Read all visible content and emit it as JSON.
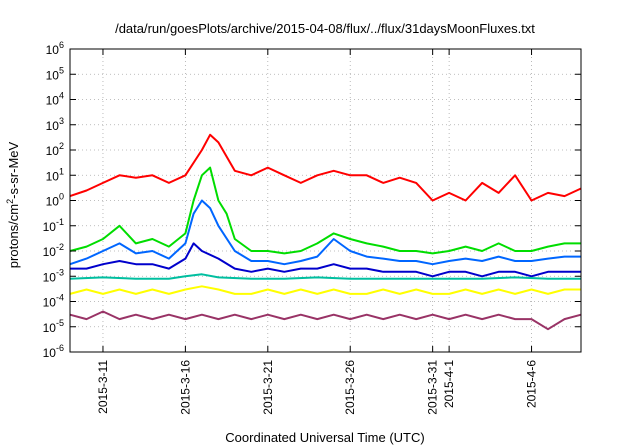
{
  "chart_data": {
    "type": "line",
    "title": "/data/run/goesPlots/archive/2015-04-08/flux/../flux/31daysMoonFluxes.txt",
    "xlabel": "Coordinated Universal Time (UTC)",
    "ylabel": {
      "prefix": "protons/cm",
      "sup": "2",
      "suffix": "-s-sr-MeV"
    },
    "y_scale": "log",
    "ylim": [
      1e-06,
      1000000.0
    ],
    "y_ticks": [
      {
        "value": 1e-06,
        "base": "10",
        "exp": "-6"
      },
      {
        "value": 1e-05,
        "base": "10",
        "exp": "-5"
      },
      {
        "value": 0.0001,
        "base": "10",
        "exp": "-4"
      },
      {
        "value": 0.001,
        "base": "10",
        "exp": "-3"
      },
      {
        "value": 0.01,
        "base": "10",
        "exp": "-2"
      },
      {
        "value": 0.1,
        "base": "10",
        "exp": "-1"
      },
      {
        "value": 1,
        "base": "10",
        "exp": "0"
      },
      {
        "value": 10,
        "base": "10",
        "exp": "1"
      },
      {
        "value": 100,
        "base": "10",
        "exp": "2"
      },
      {
        "value": 1000,
        "base": "10",
        "exp": "3"
      },
      {
        "value": 10000,
        "base": "10",
        "exp": "4"
      },
      {
        "value": 100000,
        "base": "10",
        "exp": "5"
      },
      {
        "value": 1000000,
        "base": "10",
        "exp": "6"
      }
    ],
    "xlim": [
      "2015-03-09",
      "2015-04-09"
    ],
    "x_ticks": [
      "2015-3-11",
      "2015-3-16",
      "2015-3-21",
      "2015-3-26",
      "2015-3-31",
      "2015-4-1",
      "2015-4-6"
    ],
    "grid": true,
    "series": [
      {
        "color": "#ff0000",
        "points": [
          [
            "2015-03-09",
            1.5
          ],
          [
            "2015-03-10",
            2.5
          ],
          [
            "2015-03-11",
            5
          ],
          [
            "2015-03-12",
            10
          ],
          [
            "2015-03-13",
            8
          ],
          [
            "2015-03-14",
            10
          ],
          [
            "2015-03-15",
            5
          ],
          [
            "2015-03-16",
            10
          ],
          [
            "2015-03-17",
            100
          ],
          [
            "2015-03-17T12:00",
            400
          ],
          [
            "2015-03-18",
            200
          ],
          [
            "2015-03-19",
            15
          ],
          [
            "2015-03-20",
            10
          ],
          [
            "2015-03-21",
            20
          ],
          [
            "2015-03-22",
            10
          ],
          [
            "2015-03-23",
            5
          ],
          [
            "2015-03-24",
            10
          ],
          [
            "2015-03-25",
            15
          ],
          [
            "2015-03-26",
            10
          ],
          [
            "2015-03-27",
            10
          ],
          [
            "2015-03-28",
            5
          ],
          [
            "2015-03-29",
            8
          ],
          [
            "2015-03-30",
            5
          ],
          [
            "2015-03-31",
            1
          ],
          [
            "2015-04-01",
            2
          ],
          [
            "2015-04-02",
            1
          ],
          [
            "2015-04-03",
            5
          ],
          [
            "2015-04-04",
            2
          ],
          [
            "2015-04-05",
            10
          ],
          [
            "2015-04-06",
            1
          ],
          [
            "2015-04-07",
            2
          ],
          [
            "2015-04-08",
            1.5
          ],
          [
            "2015-04-09",
            3
          ]
        ]
      },
      {
        "color": "#00dd00",
        "points": [
          [
            "2015-03-09",
            0.01
          ],
          [
            "2015-03-10",
            0.015
          ],
          [
            "2015-03-11",
            0.03
          ],
          [
            "2015-03-12",
            0.1
          ],
          [
            "2015-03-13",
            0.02
          ],
          [
            "2015-03-14",
            0.03
          ],
          [
            "2015-03-15",
            0.015
          ],
          [
            "2015-03-16",
            0.05
          ],
          [
            "2015-03-16T12:00",
            1
          ],
          [
            "2015-03-17",
            10
          ],
          [
            "2015-03-17T12:00",
            20
          ],
          [
            "2015-03-18",
            1
          ],
          [
            "2015-03-18T12:00",
            0.3
          ],
          [
            "2015-03-19",
            0.03
          ],
          [
            "2015-03-20",
            0.01
          ],
          [
            "2015-03-21",
            0.01
          ],
          [
            "2015-03-22",
            0.008
          ],
          [
            "2015-03-23",
            0.01
          ],
          [
            "2015-03-24",
            0.02
          ],
          [
            "2015-03-25",
            0.05
          ],
          [
            "2015-03-26",
            0.03
          ],
          [
            "2015-03-27",
            0.02
          ],
          [
            "2015-03-28",
            0.015
          ],
          [
            "2015-03-29",
            0.01
          ],
          [
            "2015-03-30",
            0.01
          ],
          [
            "2015-03-31",
            0.008
          ],
          [
            "2015-04-01",
            0.01
          ],
          [
            "2015-04-02",
            0.015
          ],
          [
            "2015-04-03",
            0.01
          ],
          [
            "2015-04-04",
            0.02
          ],
          [
            "2015-04-05",
            0.01
          ],
          [
            "2015-04-06",
            0.01
          ],
          [
            "2015-04-07",
            0.015
          ],
          [
            "2015-04-08",
            0.02
          ],
          [
            "2015-04-09",
            0.02
          ]
        ]
      },
      {
        "color": "#0066ff",
        "points": [
          [
            "2015-03-09",
            0.003
          ],
          [
            "2015-03-10",
            0.005
          ],
          [
            "2015-03-11",
            0.01
          ],
          [
            "2015-03-12",
            0.02
          ],
          [
            "2015-03-13",
            0.008
          ],
          [
            "2015-03-14",
            0.01
          ],
          [
            "2015-03-15",
            0.005
          ],
          [
            "2015-03-16",
            0.02
          ],
          [
            "2015-03-16T12:00",
            0.3
          ],
          [
            "2015-03-17",
            1
          ],
          [
            "2015-03-17T12:00",
            0.5
          ],
          [
            "2015-03-18",
            0.1
          ],
          [
            "2015-03-19",
            0.01
          ],
          [
            "2015-03-20",
            0.004
          ],
          [
            "2015-03-21",
            0.004
          ],
          [
            "2015-03-22",
            0.003
          ],
          [
            "2015-03-23",
            0.004
          ],
          [
            "2015-03-24",
            0.006
          ],
          [
            "2015-03-25",
            0.03
          ],
          [
            "2015-03-26",
            0.01
          ],
          [
            "2015-03-27",
            0.006
          ],
          [
            "2015-03-28",
            0.005
          ],
          [
            "2015-03-29",
            0.004
          ],
          [
            "2015-03-30",
            0.004
          ],
          [
            "2015-03-31",
            0.003
          ],
          [
            "2015-04-01",
            0.004
          ],
          [
            "2015-04-02",
            0.005
          ],
          [
            "2015-04-03",
            0.004
          ],
          [
            "2015-04-04",
            0.006
          ],
          [
            "2015-04-05",
            0.004
          ],
          [
            "2015-04-06",
            0.004
          ],
          [
            "2015-04-07",
            0.005
          ],
          [
            "2015-04-08",
            0.006
          ],
          [
            "2015-04-09",
            0.006
          ]
        ]
      },
      {
        "color": "#0000cc",
        "points": [
          [
            "2015-03-09",
            0.002
          ],
          [
            "2015-03-10",
            0.002
          ],
          [
            "2015-03-11",
            0.003
          ],
          [
            "2015-03-12",
            0.004
          ],
          [
            "2015-03-13",
            0.003
          ],
          [
            "2015-03-14",
            0.003
          ],
          [
            "2015-03-15",
            0.002
          ],
          [
            "2015-03-16",
            0.005
          ],
          [
            "2015-03-16T12:00",
            0.02
          ],
          [
            "2015-03-17",
            0.01
          ],
          [
            "2015-03-18",
            0.005
          ],
          [
            "2015-03-19",
            0.002
          ],
          [
            "2015-03-20",
            0.0015
          ],
          [
            "2015-03-21",
            0.002
          ],
          [
            "2015-03-22",
            0.0015
          ],
          [
            "2015-03-23",
            0.002
          ],
          [
            "2015-03-24",
            0.002
          ],
          [
            "2015-03-25",
            0.003
          ],
          [
            "2015-03-26",
            0.002
          ],
          [
            "2015-03-27",
            0.002
          ],
          [
            "2015-03-28",
            0.0015
          ],
          [
            "2015-03-29",
            0.0015
          ],
          [
            "2015-03-30",
            0.0015
          ],
          [
            "2015-03-31",
            0.001
          ],
          [
            "2015-04-01",
            0.0015
          ],
          [
            "2015-04-02",
            0.0015
          ],
          [
            "2015-04-03",
            0.001
          ],
          [
            "2015-04-04",
            0.0015
          ],
          [
            "2015-04-05",
            0.0015
          ],
          [
            "2015-04-06",
            0.001
          ],
          [
            "2015-04-07",
            0.0015
          ],
          [
            "2015-04-08",
            0.0015
          ],
          [
            "2015-04-09",
            0.0015
          ]
        ]
      },
      {
        "color": "#00bfa0",
        "points": [
          [
            "2015-03-09",
            0.0008
          ],
          [
            "2015-03-11",
            0.0009
          ],
          [
            "2015-03-13",
            0.0008
          ],
          [
            "2015-03-15",
            0.0008
          ],
          [
            "2015-03-16",
            0.001
          ],
          [
            "2015-03-17",
            0.0012
          ],
          [
            "2015-03-18",
            0.0009
          ],
          [
            "2015-03-20",
            0.0008
          ],
          [
            "2015-03-22",
            0.0008
          ],
          [
            "2015-03-24",
            0.0009
          ],
          [
            "2015-03-26",
            0.0008
          ],
          [
            "2015-03-28",
            0.0008
          ],
          [
            "2015-03-30",
            0.0008
          ],
          [
            "2015-04-01",
            0.0008
          ],
          [
            "2015-04-03",
            0.0008
          ],
          [
            "2015-04-05",
            0.0009
          ],
          [
            "2015-04-07",
            0.0008
          ],
          [
            "2015-04-09",
            0.0008
          ]
        ]
      },
      {
        "color": "#ffff00",
        "points": [
          [
            "2015-03-09",
            0.0002
          ],
          [
            "2015-03-10",
            0.0003
          ],
          [
            "2015-03-11",
            0.0002
          ],
          [
            "2015-03-12",
            0.0003
          ],
          [
            "2015-03-13",
            0.0002
          ],
          [
            "2015-03-14",
            0.0003
          ],
          [
            "2015-03-15",
            0.0002
          ],
          [
            "2015-03-16",
            0.0003
          ],
          [
            "2015-03-17",
            0.0004
          ],
          [
            "2015-03-18",
            0.0003
          ],
          [
            "2015-03-19",
            0.0002
          ],
          [
            "2015-03-20",
            0.0002
          ],
          [
            "2015-03-21",
            0.0003
          ],
          [
            "2015-03-22",
            0.0002
          ],
          [
            "2015-03-23",
            0.0003
          ],
          [
            "2015-03-24",
            0.0002
          ],
          [
            "2015-03-25",
            0.0003
          ],
          [
            "2015-03-26",
            0.0002
          ],
          [
            "2015-03-27",
            0.0002
          ],
          [
            "2015-03-28",
            0.0003
          ],
          [
            "2015-03-29",
            0.0002
          ],
          [
            "2015-03-30",
            0.0003
          ],
          [
            "2015-03-31",
            0.0002
          ],
          [
            "2015-04-01",
            0.0002
          ],
          [
            "2015-04-02",
            0.0003
          ],
          [
            "2015-04-03",
            0.0002
          ],
          [
            "2015-04-04",
            0.0003
          ],
          [
            "2015-04-05",
            0.0002
          ],
          [
            "2015-04-06",
            0.0003
          ],
          [
            "2015-04-07",
            0.0002
          ],
          [
            "2015-04-08",
            0.0003
          ],
          [
            "2015-04-09",
            0.0003
          ]
        ]
      },
      {
        "color": "#993366",
        "points": [
          [
            "2015-03-09",
            3e-05
          ],
          [
            "2015-03-10",
            2e-05
          ],
          [
            "2015-03-11",
            4e-05
          ],
          [
            "2015-03-12",
            2e-05
          ],
          [
            "2015-03-13",
            3e-05
          ],
          [
            "2015-03-14",
            2e-05
          ],
          [
            "2015-03-15",
            3e-05
          ],
          [
            "2015-03-16",
            2e-05
          ],
          [
            "2015-03-17",
            3e-05
          ],
          [
            "2015-03-18",
            2e-05
          ],
          [
            "2015-03-19",
            3e-05
          ],
          [
            "2015-03-20",
            2e-05
          ],
          [
            "2015-03-21",
            3e-05
          ],
          [
            "2015-03-22",
            2e-05
          ],
          [
            "2015-03-23",
            3e-05
          ],
          [
            "2015-03-24",
            2e-05
          ],
          [
            "2015-03-25",
            3e-05
          ],
          [
            "2015-03-26",
            2e-05
          ],
          [
            "2015-03-27",
            3e-05
          ],
          [
            "2015-03-28",
            2e-05
          ],
          [
            "2015-03-29",
            3e-05
          ],
          [
            "2015-03-30",
            2e-05
          ],
          [
            "2015-03-31",
            3e-05
          ],
          [
            "2015-04-01",
            2e-05
          ],
          [
            "2015-04-02",
            3e-05
          ],
          [
            "2015-04-03",
            2e-05
          ],
          [
            "2015-04-04",
            3e-05
          ],
          [
            "2015-04-05",
            2e-05
          ],
          [
            "2015-04-06",
            2e-05
          ],
          [
            "2015-04-07",
            8e-06
          ],
          [
            "2015-04-08",
            2e-05
          ],
          [
            "2015-04-09",
            3e-05
          ]
        ]
      }
    ]
  }
}
